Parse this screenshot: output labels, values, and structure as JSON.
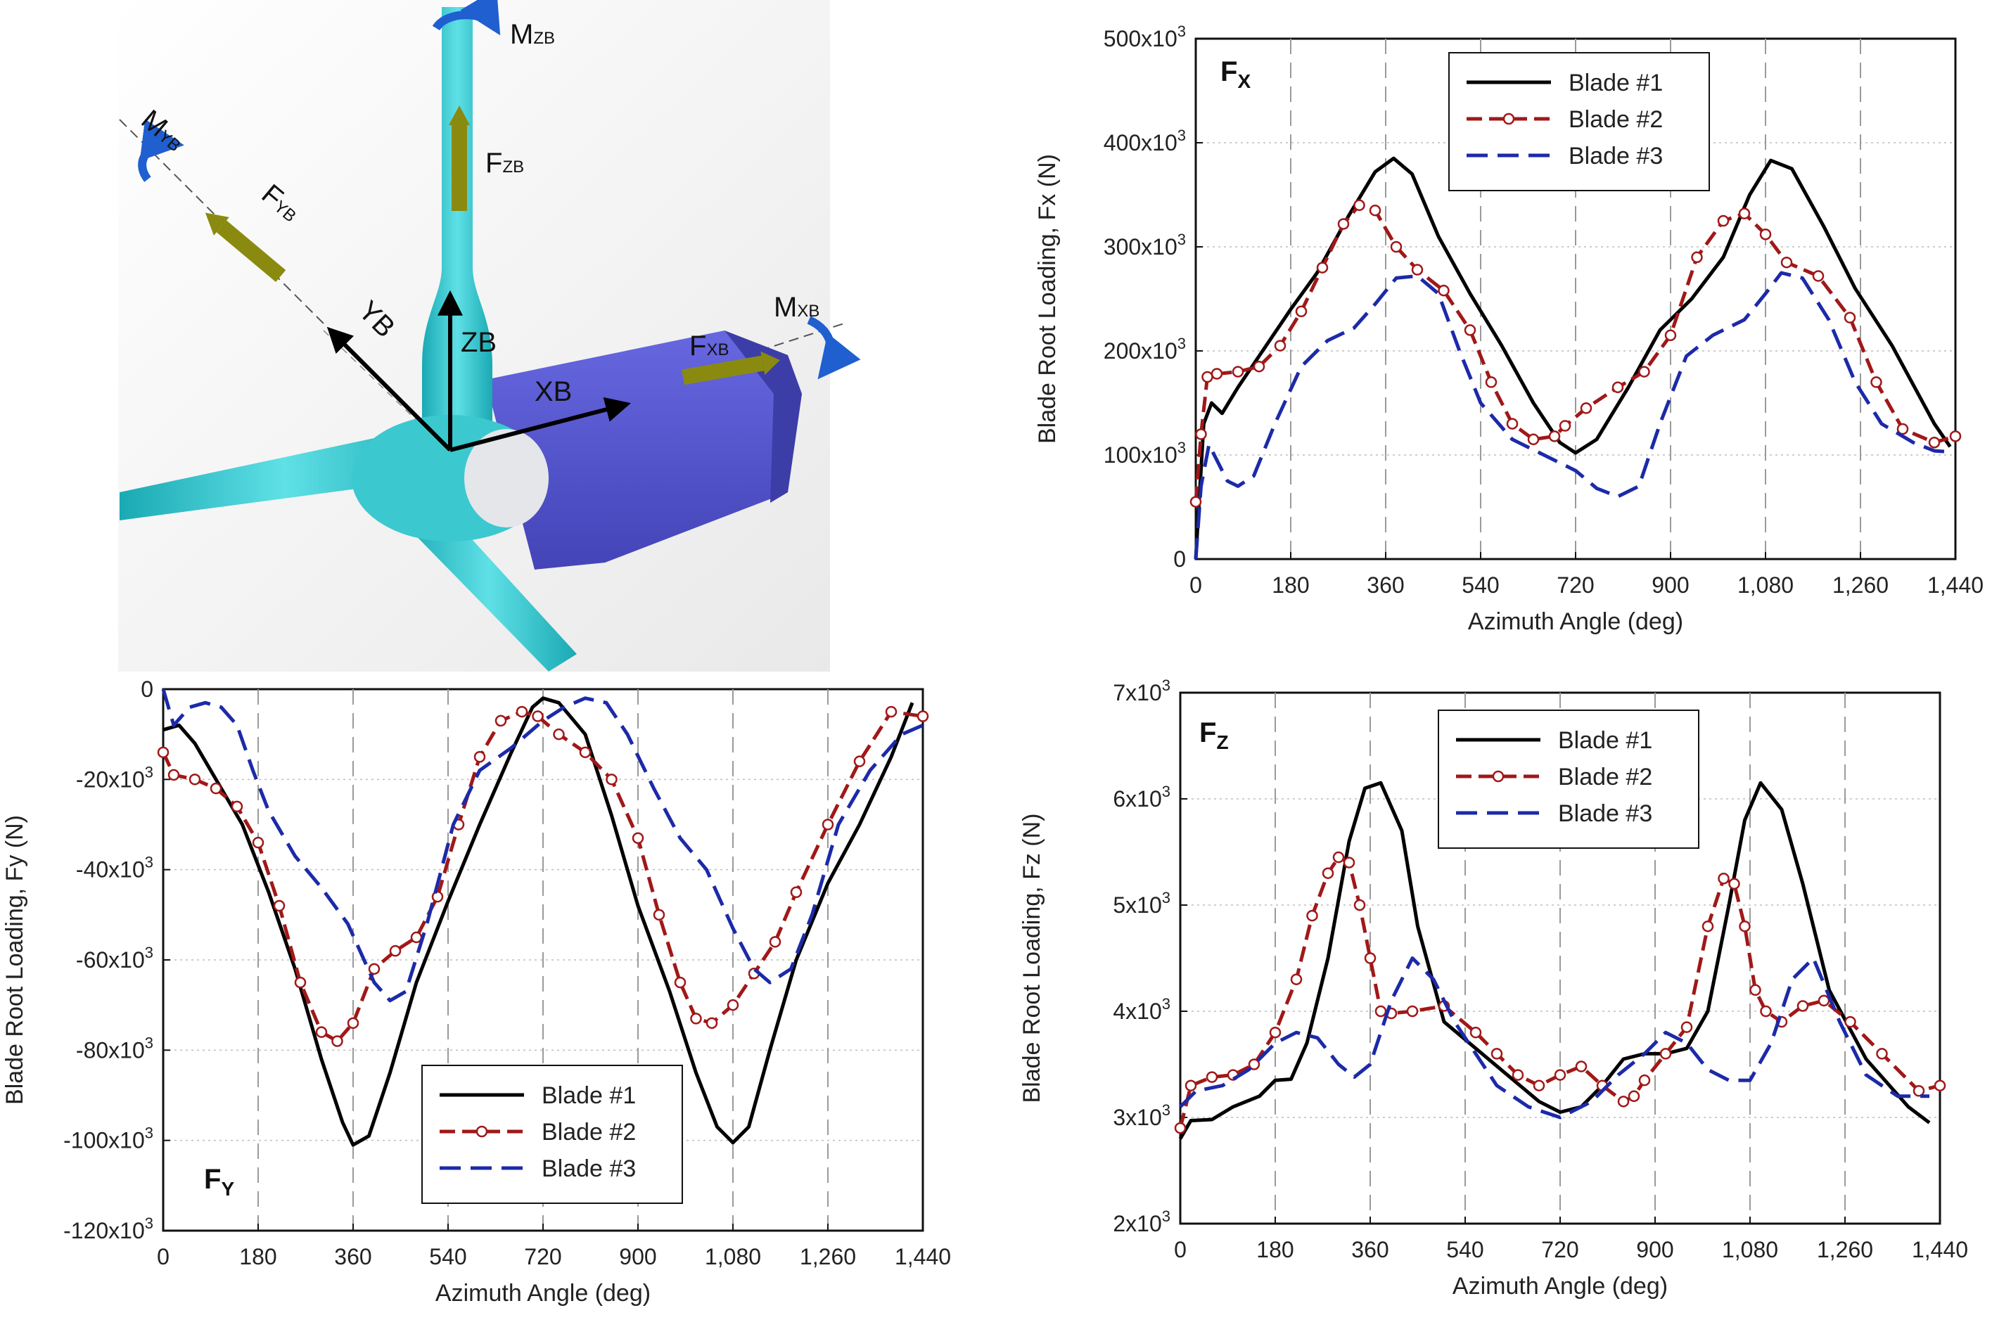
{
  "diagram": {
    "labels": {
      "mzb": "M",
      "mzb_sub": "ZB",
      "myb": "M",
      "myb_sub": "YB",
      "mxb": "M",
      "mxb_sub": "XB",
      "fzb": "F",
      "fzb_sub": "ZB",
      "fyb": "F",
      "fyb_sub": "YB",
      "fxb": "F",
      "fxb_sub": "XB",
      "zb": "ZB",
      "yb": "YB",
      "xb": "XB"
    },
    "colors": {
      "blade": "#2ec4cc",
      "nacelle": "#5b5bd6",
      "force": "#8a8a10",
      "moment": "#1f5fd0",
      "axis": "#000000"
    }
  },
  "series_styles": [
    {
      "name": "Blade #1",
      "color": "#000000",
      "dash": "none",
      "markers": false
    },
    {
      "name": "Blade #2",
      "color": "#a01818",
      "dash": "22,10",
      "markers": true
    },
    {
      "name": "Blade #3",
      "color": "#1c2aa8",
      "dash": "30,14",
      "markers": false
    }
  ],
  "chart_data": [
    {
      "id": "fx",
      "type": "line",
      "panel_label": "F",
      "panel_label_sub": "X",
      "xlabel": "Azimuth Angle (deg)",
      "ylabel": "Blade Root Loading, Fx (N)",
      "xlim": [
        0,
        1440
      ],
      "ylim": [
        0,
        500000
      ],
      "xticks": [
        0,
        180,
        360,
        540,
        720,
        900,
        1080,
        1260,
        1440
      ],
      "xtick_labels": [
        "0",
        "180",
        "360",
        "540",
        "720",
        "900",
        "1,080",
        "1,260",
        "1,440"
      ],
      "yticks": [
        0,
        100000,
        200000,
        300000,
        400000,
        500000
      ],
      "ytick_labels": [
        {
          "base": "0",
          "exp": ""
        },
        {
          "base": "100x10",
          "exp": "3"
        },
        {
          "base": "200x10",
          "exp": "3"
        },
        {
          "base": "300x10",
          "exp": "3"
        },
        {
          "base": "400x10",
          "exp": "3"
        },
        {
          "base": "500x10",
          "exp": "3"
        }
      ],
      "legend": "top-center",
      "series": [
        {
          "name": "Blade #1",
          "x": [
            0,
            15,
            30,
            50,
            80,
            120,
            180,
            230,
            290,
            340,
            375,
            410,
            460,
            520,
            580,
            640,
            690,
            720,
            760,
            820,
            880,
            940,
            1000,
            1050,
            1090,
            1130,
            1190,
            1250,
            1320,
            1400,
            1430
          ],
          "y": [
            0,
            130000,
            150000,
            140000,
            165000,
            195000,
            240000,
            275000,
            330000,
            372000,
            385000,
            370000,
            310000,
            255000,
            205000,
            150000,
            112000,
            102000,
            115000,
            165000,
            220000,
            250000,
            290000,
            350000,
            383000,
            375000,
            320000,
            260000,
            205000,
            130000,
            108000
          ]
        },
        {
          "name": "Blade #2",
          "x": [
            0,
            10,
            22,
            40,
            80,
            120,
            160,
            200,
            240,
            280,
            310,
            340,
            380,
            420,
            470,
            520,
            560,
            600,
            640,
            680,
            700,
            740,
            800,
            850,
            900,
            950,
            1000,
            1040,
            1080,
            1120,
            1180,
            1240,
            1290,
            1340,
            1400,
            1440
          ],
          "y": [
            55000,
            120000,
            175000,
            178000,
            180000,
            185000,
            205000,
            238000,
            280000,
            322000,
            340000,
            335000,
            300000,
            278000,
            258000,
            220000,
            170000,
            130000,
            115000,
            118000,
            128000,
            145000,
            165000,
            180000,
            215000,
            290000,
            325000,
            332000,
            312000,
            285000,
            272000,
            232000,
            170000,
            125000,
            112000,
            118000
          ]
        },
        {
          "name": "Blade #3",
          "x": [
            0,
            10,
            25,
            40,
            60,
            80,
            110,
            150,
            200,
            250,
            300,
            340,
            380,
            420,
            460,
            500,
            540,
            600,
            660,
            720,
            760,
            800,
            840,
            880,
            930,
            980,
            1040,
            1080,
            1110,
            1150,
            1200,
            1250,
            1300,
            1360,
            1400,
            1430
          ],
          "y": [
            0,
            70000,
            110000,
            95000,
            75000,
            70000,
            80000,
            130000,
            185000,
            210000,
            222000,
            245000,
            270000,
            272000,
            255000,
            200000,
            150000,
            115000,
            100000,
            85000,
            68000,
            60000,
            70000,
            130000,
            195000,
            215000,
            230000,
            255000,
            275000,
            270000,
            230000,
            170000,
            130000,
            112000,
            104000,
            103000
          ]
        }
      ]
    },
    {
      "id": "fy",
      "type": "line",
      "panel_label": "F",
      "panel_label_sub": "Y",
      "xlabel": "Azimuth Angle (deg)",
      "ylabel": "Blade Root Loading, Fy (N)",
      "xlim": [
        0,
        1440
      ],
      "ylim": [
        -120000,
        0
      ],
      "xticks": [
        0,
        180,
        360,
        540,
        720,
        900,
        1080,
        1260,
        1440
      ],
      "xtick_labels": [
        "0",
        "180",
        "360",
        "540",
        "720",
        "900",
        "1,080",
        "1,260",
        "1,440"
      ],
      "yticks": [
        0,
        -20000,
        -40000,
        -60000,
        -80000,
        -100000,
        -120000
      ],
      "ytick_labels": [
        {
          "base": "0",
          "exp": ""
        },
        {
          "base": "-20x10",
          "exp": "3"
        },
        {
          "base": "-40x10",
          "exp": "3"
        },
        {
          "base": "-60x10",
          "exp": "3"
        },
        {
          "base": "-80x10",
          "exp": "3"
        },
        {
          "base": "-100x10",
          "exp": "3"
        },
        {
          "base": "-120x10",
          "exp": "3"
        }
      ],
      "legend": "bottom-center",
      "series": [
        {
          "name": "Blade #1",
          "x": [
            0,
            30,
            60,
            100,
            150,
            200,
            250,
            300,
            340,
            360,
            390,
            430,
            480,
            540,
            600,
            660,
            700,
            720,
            750,
            800,
            850,
            900,
            960,
            1010,
            1050,
            1080,
            1110,
            1150,
            1200,
            1260,
            1320,
            1380,
            1420
          ],
          "y": [
            -9000,
            -8000,
            -12000,
            -20000,
            -30000,
            -45000,
            -62000,
            -82000,
            -96000,
            -101000,
            -99000,
            -85000,
            -65000,
            -47000,
            -30000,
            -14000,
            -4000,
            -2000,
            -3000,
            -10000,
            -28000,
            -48000,
            -67000,
            -85000,
            -97000,
            -100500,
            -97000,
            -80000,
            -60000,
            -43000,
            -30000,
            -15000,
            -3000
          ]
        },
        {
          "name": "Blade #2",
          "x": [
            0,
            20,
            60,
            100,
            140,
            180,
            220,
            260,
            300,
            330,
            360,
            400,
            440,
            480,
            520,
            560,
            600,
            640,
            680,
            710,
            750,
            800,
            850,
            900,
            940,
            980,
            1010,
            1040,
            1080,
            1120,
            1160,
            1200,
            1260,
            1320,
            1380,
            1440
          ],
          "y": [
            -14000,
            -19000,
            -20000,
            -22000,
            -26000,
            -34000,
            -48000,
            -65000,
            -76000,
            -78000,
            -74000,
            -62000,
            -58000,
            -55000,
            -46000,
            -30000,
            -15000,
            -7000,
            -5000,
            -6000,
            -10000,
            -14000,
            -20000,
            -33000,
            -50000,
            -65000,
            -73000,
            -74000,
            -70000,
            -63000,
            -56000,
            -45000,
            -30000,
            -16000,
            -5000,
            -6000
          ]
        },
        {
          "name": "Blade #3",
          "x": [
            0,
            20,
            50,
            80,
            110,
            140,
            170,
            200,
            250,
            300,
            350,
            400,
            430,
            460,
            500,
            550,
            600,
            660,
            720,
            760,
            800,
            840,
            880,
            930,
            980,
            1030,
            1080,
            1120,
            1150,
            1190,
            1230,
            1280,
            1340,
            1400,
            1440
          ],
          "y": [
            0,
            -8000,
            -4000,
            -3000,
            -4000,
            -8000,
            -18000,
            -27000,
            -37000,
            -44000,
            -52000,
            -65000,
            -69000,
            -67000,
            -52000,
            -30000,
            -18000,
            -13000,
            -7000,
            -4000,
            -2000,
            -3000,
            -10000,
            -22000,
            -33000,
            -40000,
            -53000,
            -62000,
            -65000,
            -62000,
            -50000,
            -30000,
            -18000,
            -10000,
            -8000
          ]
        }
      ]
    },
    {
      "id": "fz",
      "type": "line",
      "panel_label": "F",
      "panel_label_sub": "Z",
      "xlabel": "Azimuth Angle (deg)",
      "ylabel": "Blade Root Loading, Fz (N)",
      "xlim": [
        0,
        1440
      ],
      "ylim": [
        2000,
        7000
      ],
      "xticks": [
        0,
        180,
        360,
        540,
        720,
        900,
        1080,
        1260,
        1440
      ],
      "xtick_labels": [
        "0",
        "180",
        "360",
        "540",
        "720",
        "900",
        "1,080",
        "1,260",
        "1,440"
      ],
      "yticks": [
        2000,
        3000,
        4000,
        5000,
        6000,
        7000
      ],
      "ytick_labels": [
        {
          "base": "2x10",
          "exp": "3"
        },
        {
          "base": "3x10",
          "exp": "3"
        },
        {
          "base": "4x10",
          "exp": "3"
        },
        {
          "base": "5x10",
          "exp": "3"
        },
        {
          "base": "6x10",
          "exp": "3"
        },
        {
          "base": "7x10",
          "exp": "3"
        }
      ],
      "legend": "top-center",
      "series": [
        {
          "name": "Blade #1",
          "x": [
            0,
            20,
            60,
            100,
            150,
            180,
            210,
            240,
            280,
            320,
            350,
            380,
            420,
            450,
            500,
            560,
            620,
            680,
            720,
            760,
            800,
            840,
            880,
            920,
            960,
            1000,
            1040,
            1070,
            1100,
            1140,
            1180,
            1230,
            1300,
            1380,
            1420
          ],
          "y": [
            2800,
            2970,
            2980,
            3100,
            3200,
            3350,
            3360,
            3700,
            4500,
            5600,
            6100,
            6150,
            5700,
            4800,
            3900,
            3650,
            3400,
            3150,
            3050,
            3100,
            3300,
            3550,
            3600,
            3600,
            3650,
            4000,
            5000,
            5800,
            6150,
            5900,
            5200,
            4200,
            3550,
            3100,
            2950
          ]
        },
        {
          "name": "Blade #2",
          "x": [
            0,
            20,
            60,
            100,
            140,
            180,
            220,
            250,
            280,
            300,
            320,
            340,
            360,
            380,
            400,
            440,
            500,
            560,
            600,
            640,
            680,
            720,
            760,
            800,
            840,
            860,
            880,
            920,
            960,
            1000,
            1030,
            1050,
            1070,
            1090,
            1110,
            1140,
            1180,
            1220,
            1270,
            1330,
            1400,
            1440
          ],
          "y": [
            2900,
            3300,
            3380,
            3400,
            3500,
            3800,
            4300,
            4900,
            5300,
            5450,
            5400,
            5000,
            4500,
            4000,
            3980,
            4000,
            4050,
            3800,
            3600,
            3400,
            3300,
            3400,
            3480,
            3300,
            3150,
            3200,
            3350,
            3600,
            3850,
            4800,
            5250,
            5200,
            4800,
            4200,
            4000,
            3900,
            4050,
            4100,
            3900,
            3600,
            3250,
            3300
          ]
        },
        {
          "name": "Blade #3",
          "x": [
            0,
            30,
            80,
            130,
            180,
            220,
            260,
            300,
            330,
            360,
            400,
            440,
            480,
            520,
            560,
            600,
            660,
            720,
            780,
            830,
            880,
            920,
            960,
            1000,
            1040,
            1080,
            1120,
            1160,
            1200,
            1250,
            1300,
            1360,
            1420
          ],
          "y": [
            3100,
            3250,
            3300,
            3450,
            3700,
            3800,
            3750,
            3500,
            3380,
            3500,
            4100,
            4500,
            4300,
            3900,
            3600,
            3300,
            3100,
            3000,
            3150,
            3400,
            3600,
            3800,
            3700,
            3450,
            3350,
            3350,
            3700,
            4300,
            4500,
            3900,
            3400,
            3200,
            3200
          ]
        }
      ]
    }
  ]
}
